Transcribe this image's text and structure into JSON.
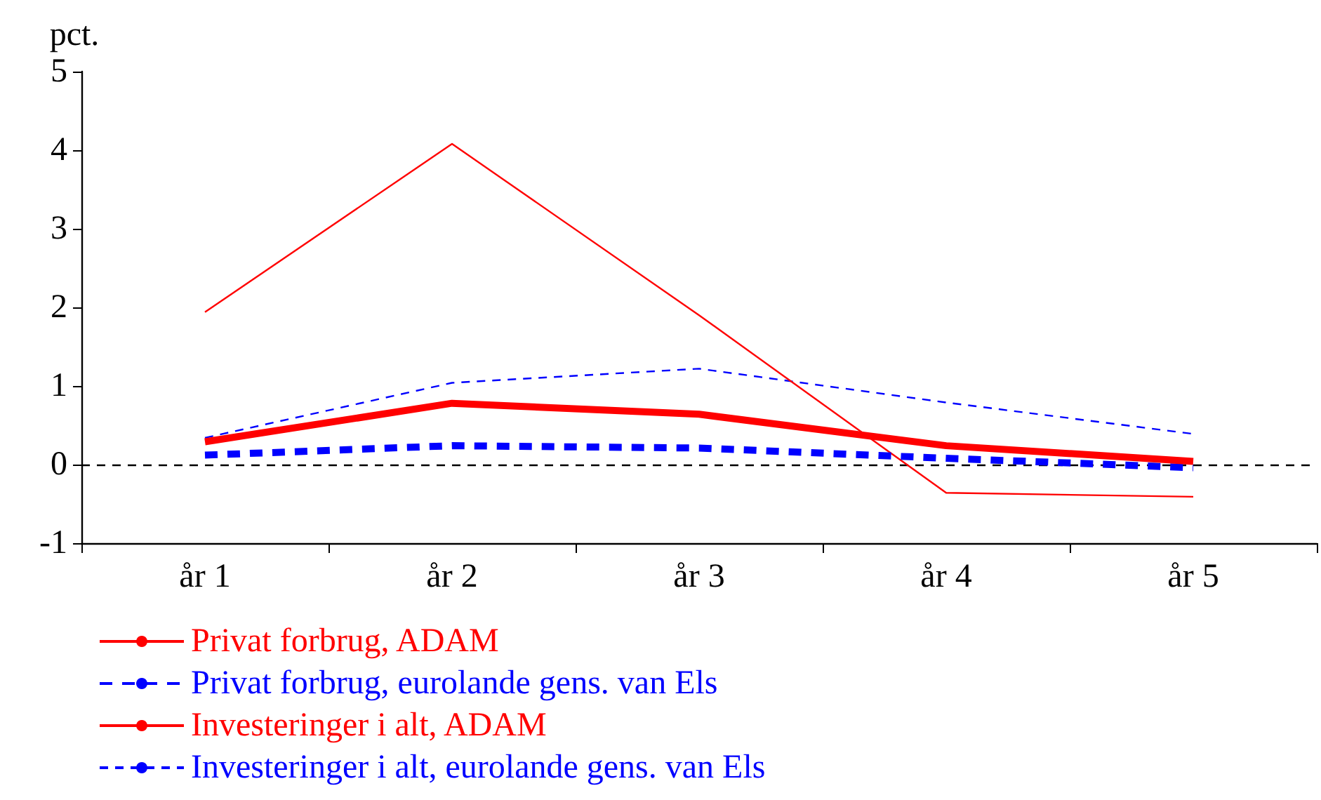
{
  "chart_data": {
    "type": "line",
    "ylabel": "pct.",
    "categories": [
      "år 1",
      "år 2",
      "år 3",
      "år 4",
      "år 5"
    ],
    "series": [
      {
        "name": "Privat forbrug, ADAM",
        "color": "#ff0000",
        "line_style": "solid",
        "values": [
          0.29,
          0.78,
          0.64,
          0.24,
          0.04
        ]
      },
      {
        "name": "Privat forbrug, eurolande gens. van Els",
        "color": "#0000ff",
        "line_style": "dashed",
        "values": [
          0.12,
          0.24,
          0.21,
          0.08,
          -0.04
        ]
      },
      {
        "name": "Investeringer i alt, ADAM",
        "color": "#ff0000",
        "line_style": "solid",
        "values": [
          1.94,
          4.08,
          1.9,
          -0.36,
          -0.41
        ]
      },
      {
        "name": "Investeringer i alt, eurolande gens. van Els",
        "color": "#0000ff",
        "line_style": "dashed",
        "values": [
          0.34,
          1.04,
          1.22,
          0.79,
          0.39
        ]
      }
    ],
    "ylim": [
      -1,
      5
    ],
    "yticks": [
      -1,
      0,
      1,
      2,
      3,
      4,
      5
    ],
    "ref_lines": [
      {
        "axis": "y",
        "value": 0,
        "color": "#000000",
        "line_style": "dashed"
      }
    ],
    "grid": false,
    "legend": "bottom",
    "marker": "none"
  }
}
